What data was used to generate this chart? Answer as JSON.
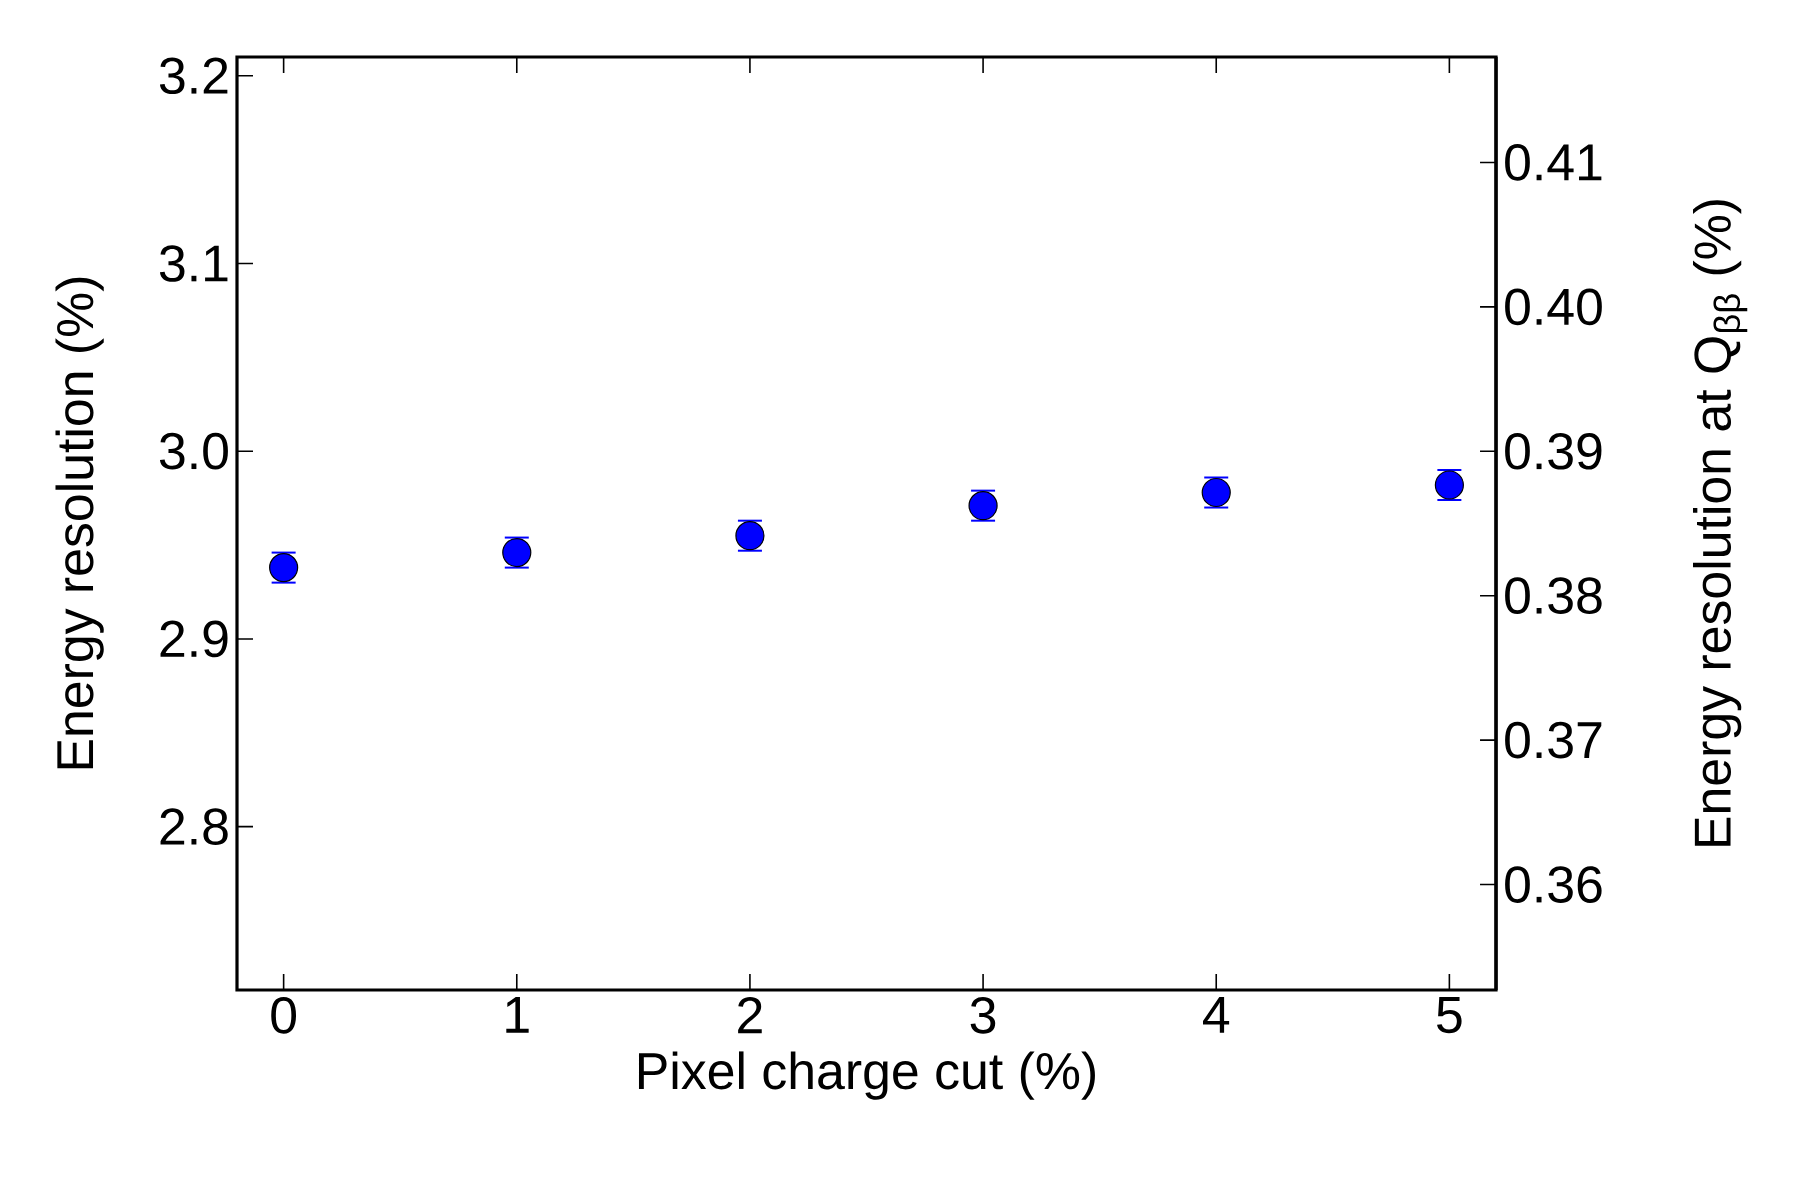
{
  "chart_data": {
    "type": "scatter",
    "xlabel": "Pixel charge cut (%)",
    "ylabel": "Energy resolution (%)",
    "y2label": "Energy resolution at Q$_{ββ}$ (%)",
    "x": [
      0,
      1,
      2,
      3,
      4,
      5
    ],
    "series": [
      {
        "color": "#0000ff",
        "values": [
          2.938,
          2.946,
          2.955,
          2.971,
          2.978,
          2.982
        ],
        "errors": [
          0.008,
          0.008,
          0.008,
          0.008,
          0.008,
          0.008
        ]
      }
    ],
    "marker": "circle",
    "xlim": [
      -0.2,
      5.2
    ],
    "xticks": [
      0,
      1,
      2,
      3,
      4,
      5
    ],
    "ylim": [
      2.713,
      3.21
    ],
    "yticks": [
      2.8,
      2.9,
      {
        "value": 3.0,
        "label": "3.0"
      },
      3.1,
      3.2
    ],
    "y2lim": [
      0.3527,
      0.4173
    ],
    "y2ticks": [
      0.36,
      0.37,
      0.38,
      0.39,
      {
        "value": 0.4,
        "label": "0.40"
      },
      0.41
    ]
  }
}
